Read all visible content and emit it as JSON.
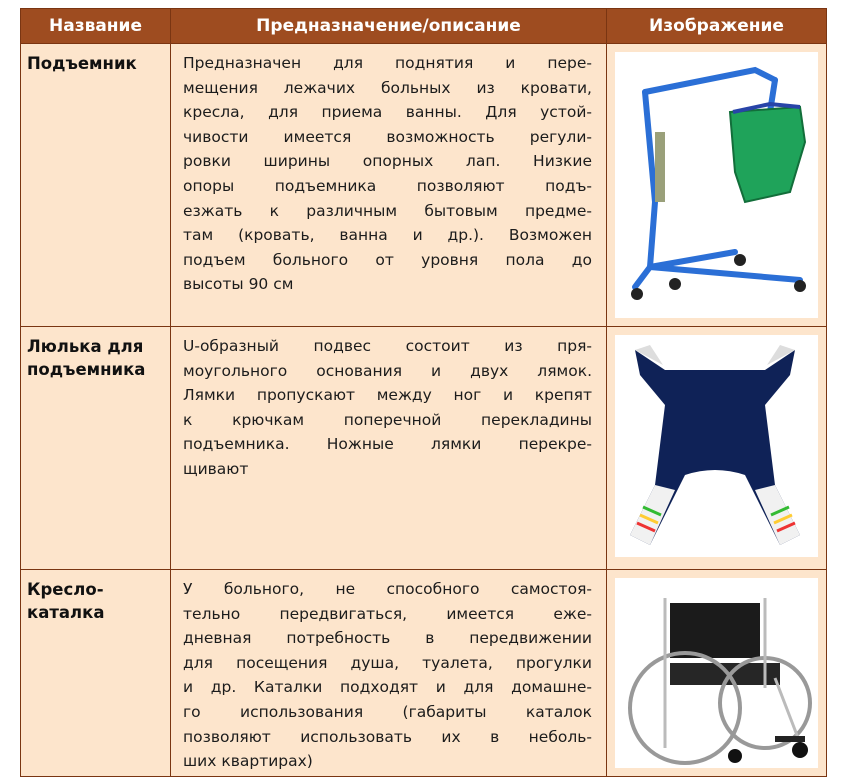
{
  "table": {
    "header": [
      "Название",
      "Предназначение/описание",
      "Изображение"
    ],
    "rows": [
      {
        "name": [
          "Подъемник"
        ],
        "description": [
          "Предназначен для поднятия и пере-",
          "мещения лежачих больных из кровати,",
          "кресла, для приема ванны. Для устой-",
          "чивости имеется возможность регули-",
          "ровки ширины опорных лап. Низкие",
          "опоры подъемника позволяют подъ-",
          "езжать к различным бытовым предме-",
          "там (кровать, ванна и др.). Возможен",
          "подъем больного от уровня пола до",
          "высоты 90 см"
        ]
      },
      {
        "name": [
          "Люлька для",
          "подъемника"
        ],
        "description": [
          "U-образный подвес состоит из пря-",
          "моугольного основания и двух лямок.",
          "Лямки пропускают между ног и крепят",
          "к крючкам поперечной перекладины",
          "подъемника. Ножные лямки перекре-",
          "щивают"
        ]
      },
      {
        "name": [
          "Кресло-",
          "каталка"
        ],
        "description": [
          "У больного, не способного самостоя-",
          "тельно передвигаться, имеется еже-",
          "дневная потребность в передвижении",
          "для посещения душа, туалета, прогулки",
          "и др. Каталки подходят и для домашне-",
          "го использования (габариты каталок",
          "позволяют использовать их в неболь-",
          "ших квартирах)"
        ]
      }
    ]
  }
}
